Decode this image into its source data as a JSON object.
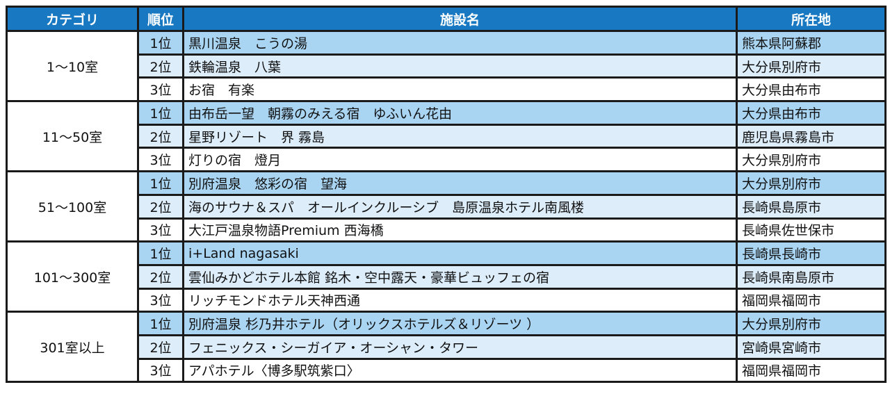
{
  "header": {
    "category": "カテゴリ",
    "rank": "順位",
    "name": "施設名",
    "location": "所在地"
  },
  "colors": {
    "header": "#1878c2",
    "rank1": "#a9d5f3",
    "rank2": "#ddedfa",
    "rank3": "#ffffff"
  },
  "groups": [
    {
      "category": "1～10室",
      "rows": [
        {
          "rank": "1位",
          "name": "黒川温泉　こうの湯",
          "location": "熊本県阿蘇郡"
        },
        {
          "rank": "2位",
          "name": "鉄輪温泉　八葉",
          "location": "大分県別府市"
        },
        {
          "rank": "3位",
          "name": "お宿　有楽",
          "location": "大分県由布市"
        }
      ]
    },
    {
      "category": "11～50室",
      "rows": [
        {
          "rank": "1位",
          "name": "由布岳一望　朝霧のみえる宿　ゆふいん花由",
          "location": "大分県由布市"
        },
        {
          "rank": "2位",
          "name": "星野リゾート　界 霧島",
          "location": "鹿児島県霧島市"
        },
        {
          "rank": "3位",
          "name": "灯りの宿　燈月",
          "location": "大分県別府市"
        }
      ]
    },
    {
      "category": "51～100室",
      "rows": [
        {
          "rank": "1位",
          "name": "別府温泉　悠彩の宿　望海",
          "location": "大分県別府市"
        },
        {
          "rank": "2位",
          "name": "海のサウナ＆スパ　オールインクルーシブ　島原温泉ホテル南風楼",
          "location": "長崎県島原市"
        },
        {
          "rank": "3位",
          "name": "大江戸温泉物語Premium 西海橋",
          "location": "長崎県佐世保市"
        }
      ]
    },
    {
      "category": "101～300室",
      "rows": [
        {
          "rank": "1位",
          "name": "i+Land nagasaki",
          "location": "長崎県長崎市"
        },
        {
          "rank": "2位",
          "name": "雲仙みかどホテル本館 銘木・空中露天・豪華ビュッフェの宿",
          "location": "長崎県南島原市"
        },
        {
          "rank": "3位",
          "name": "リッチモンドホテル天神西通",
          "location": "福岡県福岡市"
        }
      ]
    },
    {
      "category": "301室以上",
      "rows": [
        {
          "rank": "1位",
          "name": "別府温泉 杉乃井ホテル（オリックスホテルズ＆リゾーツ ）",
          "location": "大分県別府市"
        },
        {
          "rank": "2位",
          "name": "フェニックス・シーガイア・オーシャン・タワー",
          "location": "宮崎県宮崎市"
        },
        {
          "rank": "3位",
          "name": "アパホテル〈博多駅筑紫口〉",
          "location": "福岡県福岡市"
        }
      ]
    }
  ]
}
